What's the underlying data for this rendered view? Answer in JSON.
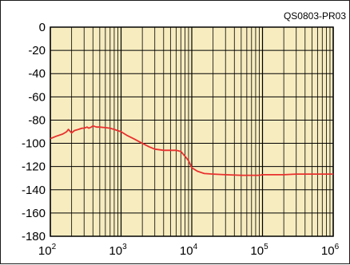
{
  "chart_data": {
    "type": "line",
    "title": "",
    "subtitle": "",
    "xlabel": "",
    "ylabel": "",
    "code": "QS0803-PR03",
    "x_scale": "log",
    "xlim": [
      100,
      1000000
    ],
    "ylim": [
      -180,
      0
    ],
    "grid": true,
    "plot_background": "#f7ecbf",
    "line_color": "#e8302e",
    "y_ticks": [
      "0",
      "-20",
      "-40",
      "-60",
      "-80",
      "-100",
      "-120",
      "-140",
      "-160",
      "-180"
    ],
    "x_ticks": [
      {
        "base": "10",
        "exp": "2"
      },
      {
        "base": "10",
        "exp": "3"
      },
      {
        "base": "10",
        "exp": "4"
      },
      {
        "base": "10",
        "exp": "5"
      },
      {
        "base": "10",
        "exp": "6"
      }
    ],
    "series": [
      {
        "x": [
          100,
          120,
          150,
          170,
          180,
          200,
          220,
          250,
          280,
          300,
          330,
          350,
          380,
          400,
          450,
          500,
          600,
          700,
          800,
          1000,
          1200,
          1500,
          2000,
          2500,
          3000,
          4000,
          5000,
          6000,
          7000,
          8000,
          9000,
          10000,
          12000,
          15000,
          20000,
          30000,
          50000,
          70000,
          90000,
          100000,
          150000,
          200000,
          300000,
          500000,
          700000,
          1000000
        ],
        "y": [
          -96,
          -94,
          -92,
          -90,
          -88,
          -91,
          -89,
          -88,
          -87,
          -87,
          -86,
          -87,
          -86,
          -85,
          -86,
          -86,
          -86.5,
          -87,
          -88,
          -90,
          -93,
          -96,
          -100,
          -103,
          -105,
          -106,
          -106,
          -106,
          -107,
          -111,
          -115,
          -121,
          -124,
          -126,
          -126.5,
          -127,
          -127.5,
          -127.5,
          -127.5,
          -127,
          -127,
          -127,
          -126.5,
          -126.5,
          -126.5,
          -126.5
        ]
      }
    ]
  }
}
